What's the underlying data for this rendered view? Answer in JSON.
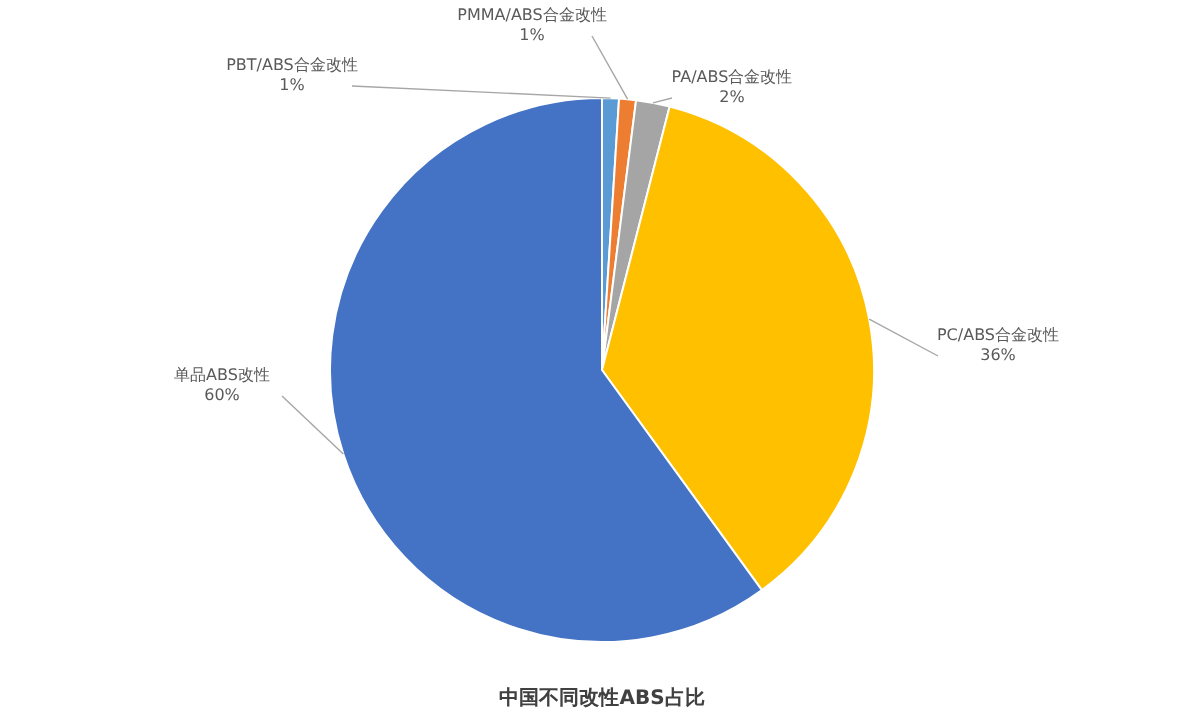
{
  "chart_data": {
    "type": "pie",
    "title": "中国不同改性ABS占比",
    "categories": [
      "PBT/ABS合金改性",
      "PMMA/ABS合金改性",
      "PA/ABS合金改性",
      "PC/ABS合金改性",
      "单品ABS改性"
    ],
    "values": [
      1,
      1,
      2,
      36,
      60
    ],
    "colors": [
      "#5b9bd5",
      "#ed7d31",
      "#a5a5a5",
      "#ffc000",
      "#4472c4"
    ],
    "value_labels": [
      "1%",
      "1%",
      "2%",
      "36%",
      "60%"
    ]
  }
}
